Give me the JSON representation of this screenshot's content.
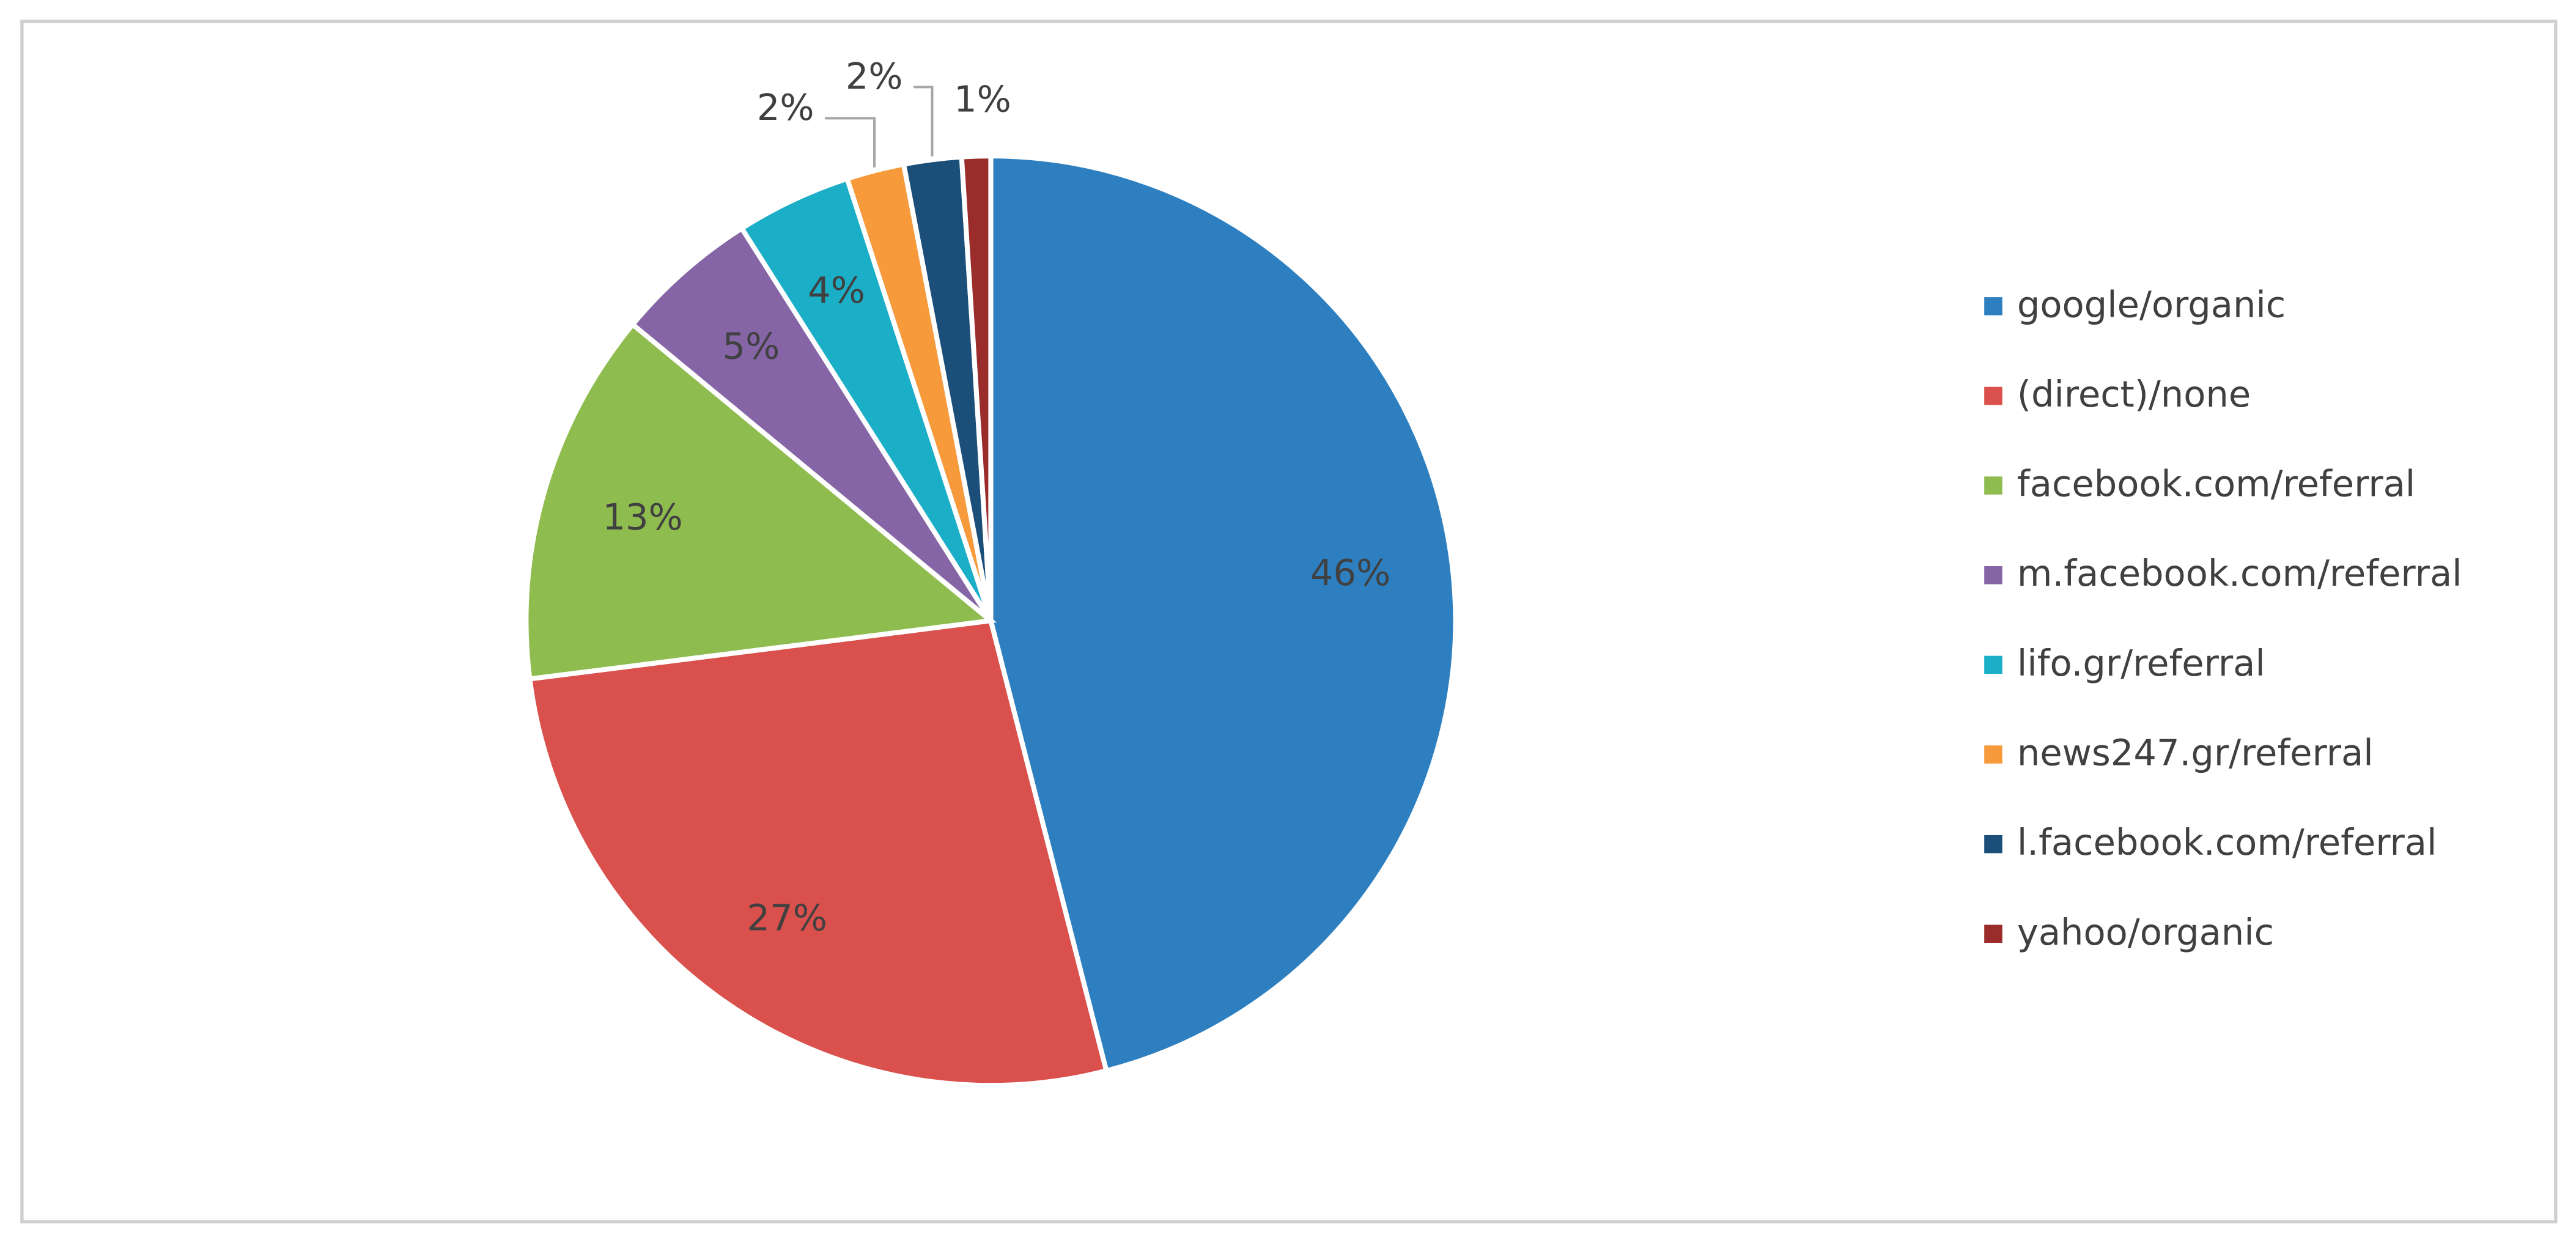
{
  "chart_data": {
    "type": "pie",
    "categories": [
      "google/organic",
      "(direct)/none",
      "facebook.com/referral",
      "m.facebook.com/referral",
      "lifo.gr/referral",
      "news247.gr/referral",
      "l.facebook.com/referral",
      "yahoo/organic"
    ],
    "values": [
      46,
      27,
      13,
      5,
      4,
      2,
      2,
      1
    ],
    "value_labels": [
      "46%",
      "27%",
      "13%",
      "5%",
      "4%",
      "2%",
      "2%",
      "1%"
    ],
    "colors": [
      "#2e7fc0",
      "#d9504c",
      "#8fbc4f",
      "#8565a6",
      "#1aaec7",
      "#f79a3c",
      "#1b4f7a",
      "#9b2c2c"
    ],
    "legend": "right"
  }
}
